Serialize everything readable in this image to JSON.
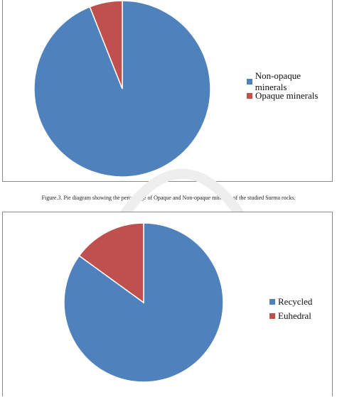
{
  "caption": "Figure.3. Pie diagram showing the percentage of Opaque and Non-opaque minerals of the  studied Surma rocks.",
  "chart_data": [
    {
      "type": "pie",
      "categories": [
        "Non-opaque minerals",
        "Opaque minerals"
      ],
      "values": [
        94,
        6
      ],
      "colors": [
        "#4f81bd",
        "#c0504d"
      ],
      "legend_position": "right"
    },
    {
      "type": "pie",
      "categories": [
        "Recycled",
        "Euhedral"
      ],
      "values": [
        85,
        15
      ],
      "colors": [
        "#4f81bd",
        "#c0504d"
      ],
      "legend_position": "right"
    }
  ]
}
